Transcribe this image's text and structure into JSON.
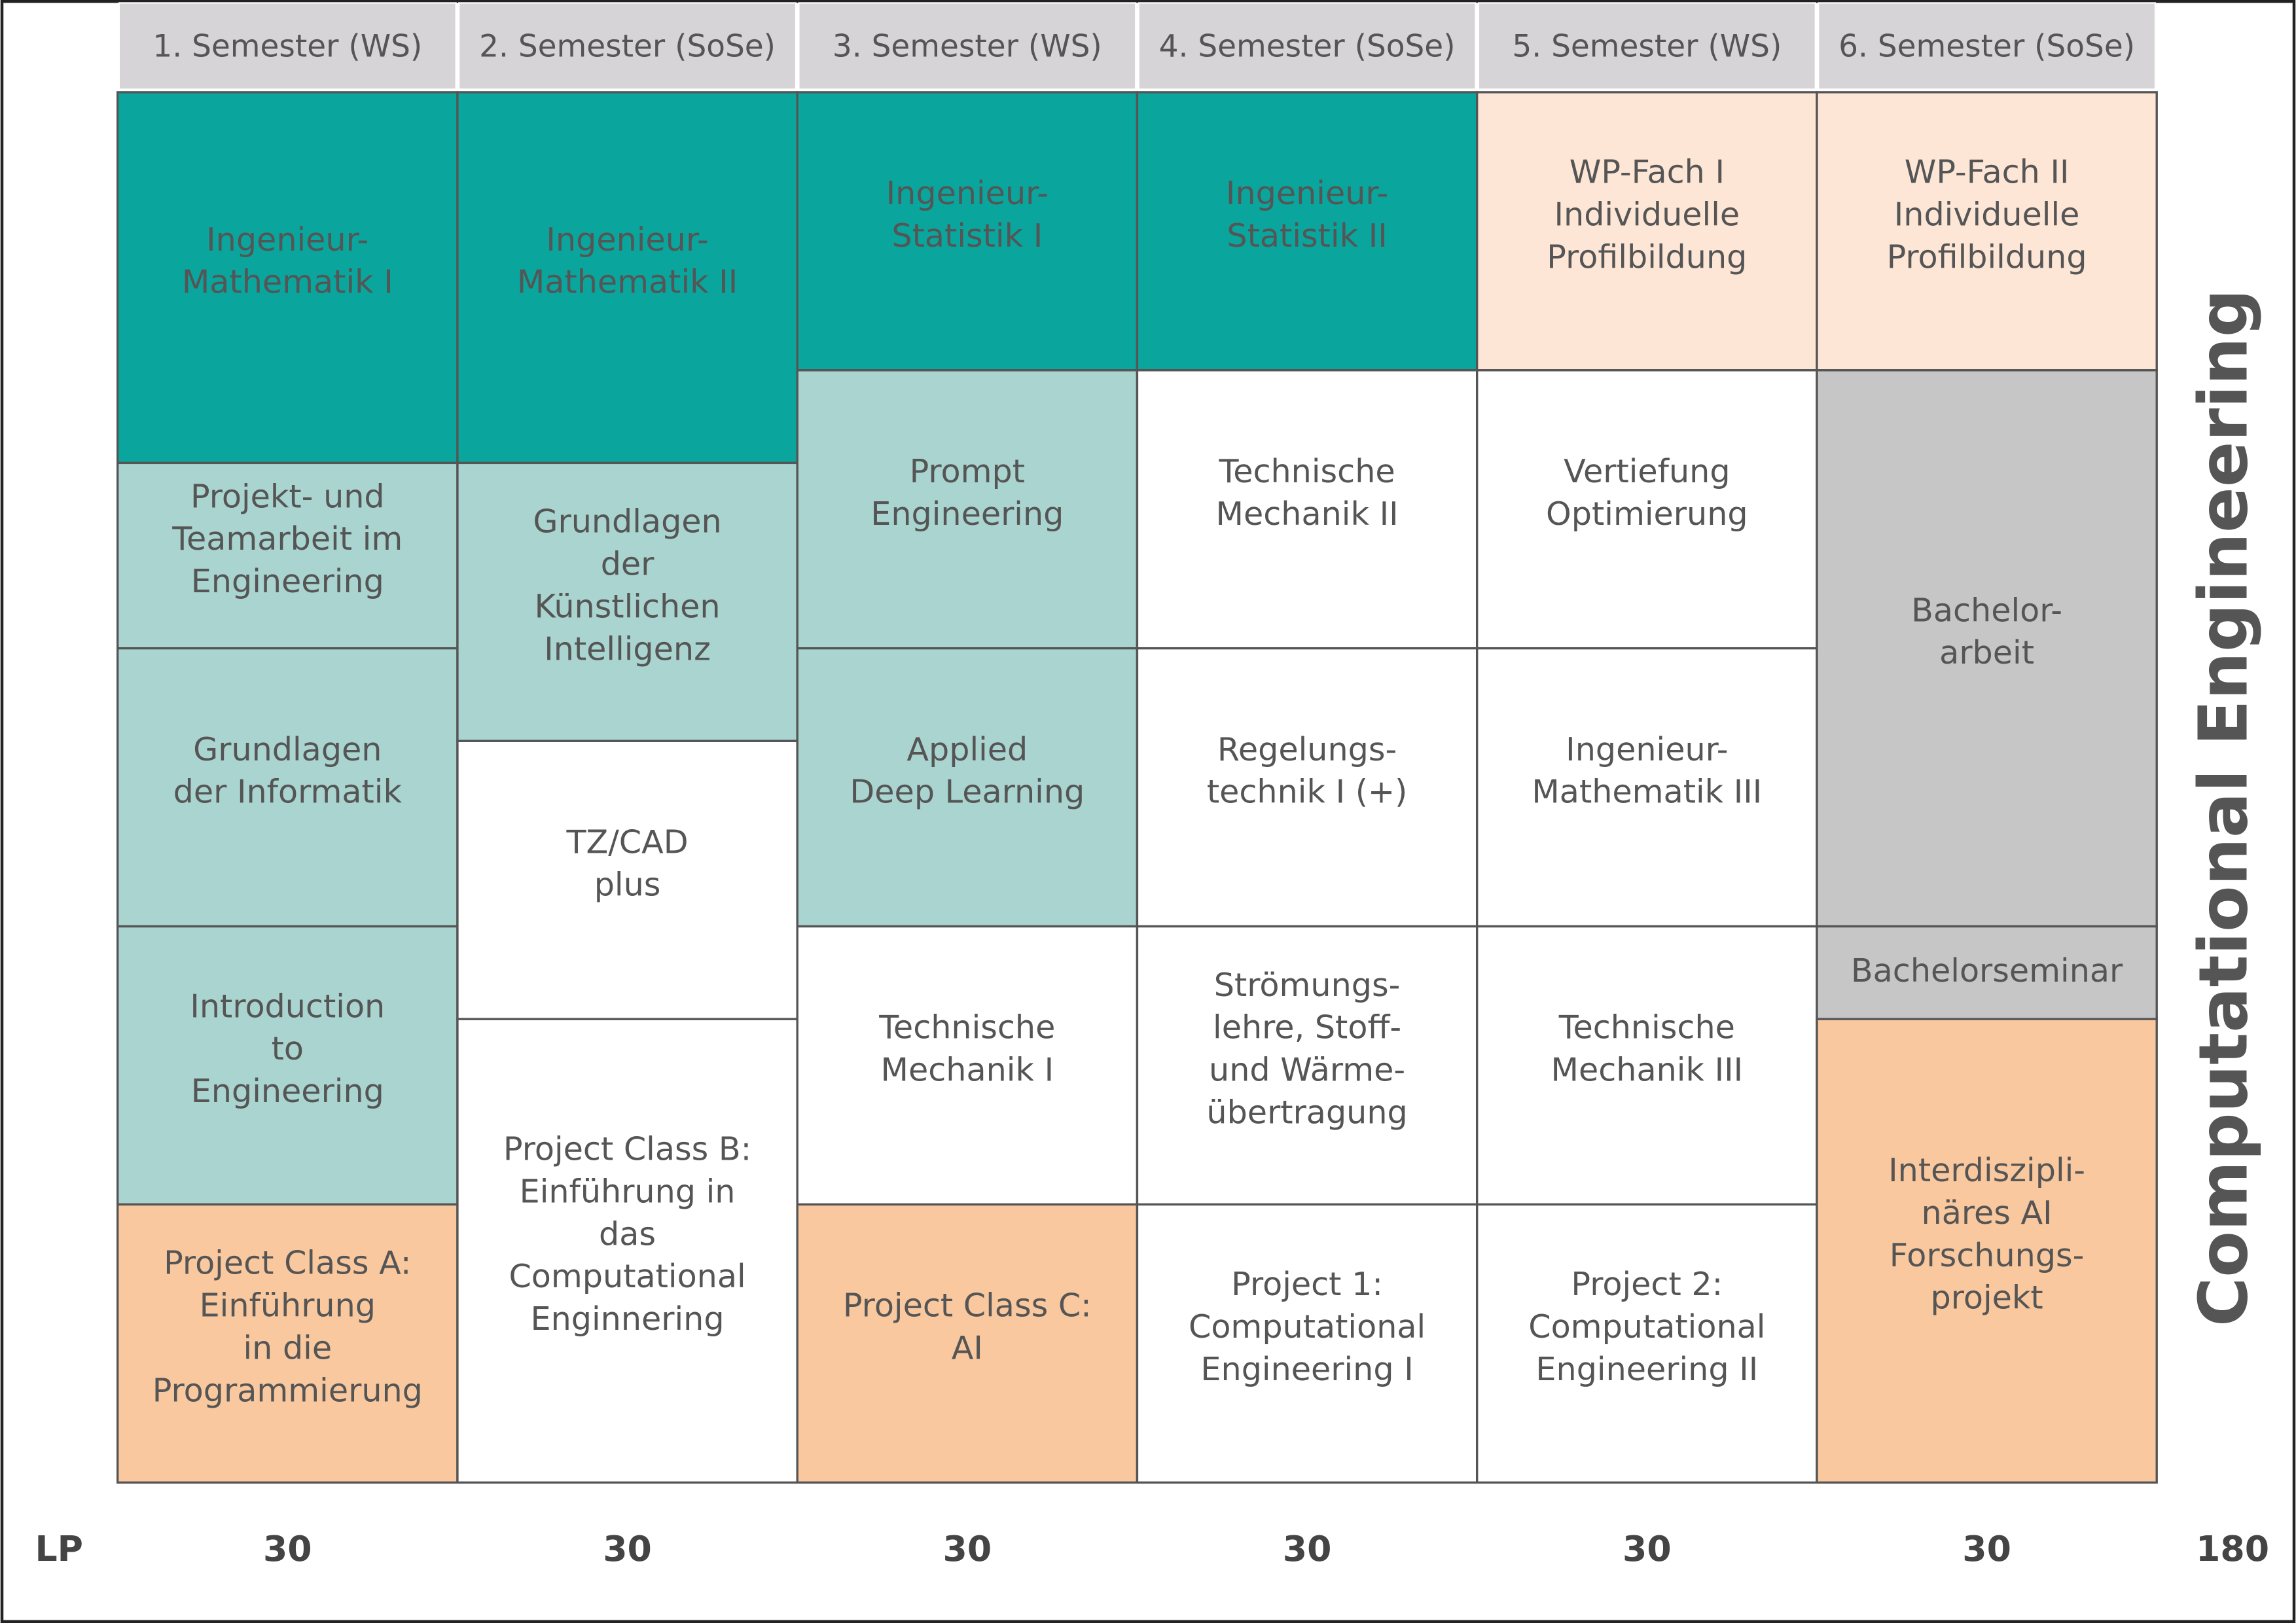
{
  "title": "Computational Engineering",
  "semesters": [
    {
      "header": "1. Semester (WS)",
      "lp": 30,
      "modules": [
        {
          "label": [
            "Ingenieur-",
            "Mathematik I"
          ]
        },
        {
          "label": [
            "Projekt- und",
            "Teamarbeit im",
            "Engineering"
          ]
        },
        {
          "label": [
            "Grundlagen",
            "der Informatik"
          ]
        },
        {
          "label": [
            "Introduction",
            "to",
            "Engineering"
          ]
        },
        {
          "label": [
            "Project Class A:",
            "Einführung",
            "in die",
            "Programmierung"
          ]
        }
      ]
    },
    {
      "header": "2. Semester (SoSe)",
      "lp": 30,
      "modules": [
        {
          "label": [
            "Ingenieur-",
            "Mathematik II"
          ]
        },
        {
          "label": [
            "Grundlagen",
            "der",
            "Künstlichen",
            "Intelligenz"
          ]
        },
        {
          "label": [
            "TZ/CAD",
            "plus"
          ]
        },
        {
          "label": [
            "Project Class B:",
            "Einführung in",
            "das",
            "Computational",
            "Enginnering"
          ]
        }
      ]
    },
    {
      "header": "3. Semester (WS)",
      "lp": 30,
      "modules": [
        {
          "label": [
            "Ingenieur-",
            "Statistik I"
          ]
        },
        {
          "label": [
            "Prompt",
            "Engineering"
          ]
        },
        {
          "label": [
            "Applied",
            "Deep Learning"
          ]
        },
        {
          "label": [
            "Technische",
            "Mechanik I"
          ]
        },
        {
          "label": [
            "Project Class C:",
            "AI"
          ]
        }
      ]
    },
    {
      "header": "4. Semester (SoSe)",
      "lp": 30,
      "modules": [
        {
          "label": [
            "Ingenieur-",
            "Statistik II"
          ]
        },
        {
          "label": [
            "Technische",
            "Mechanik II"
          ]
        },
        {
          "label": [
            "Regelungs-",
            "technik I (+)"
          ]
        },
        {
          "label": [
            "Strömungs-",
            "lehre, Stoff-",
            "und Wärme-",
            "übertragung"
          ]
        },
        {
          "label": [
            "Project 1:",
            "Computational",
            "Engineering I"
          ]
        }
      ]
    },
    {
      "header": "5. Semester (WS)",
      "lp": 30,
      "modules": [
        {
          "label": [
            "WP-Fach I",
            "Individuelle",
            "Profilbildung"
          ]
        },
        {
          "label": [
            "Vertiefung",
            "Optimierung"
          ]
        },
        {
          "label": [
            "Ingenieur-",
            "Mathematik III"
          ]
        },
        {
          "label": [
            "Technische",
            "Mechanik III"
          ]
        },
        {
          "label": [
            "Project 2:",
            "Computational",
            "Engineering II"
          ]
        }
      ]
    },
    {
      "header": "6. Semester (SoSe)",
      "lp": 30,
      "modules": [
        {
          "label": [
            "WP-Fach II",
            "Individuelle",
            "Profilbildung"
          ]
        },
        {
          "label": [
            "Bachelor-",
            "arbeit"
          ]
        },
        {
          "label": [
            "Bachelorseminar"
          ]
        },
        {
          "label": [
            "Interdiszipli-",
            "näres AI",
            "Forschungs-",
            "projekt"
          ]
        }
      ]
    }
  ],
  "lp_label": "LP",
  "lp_total": 180
}
